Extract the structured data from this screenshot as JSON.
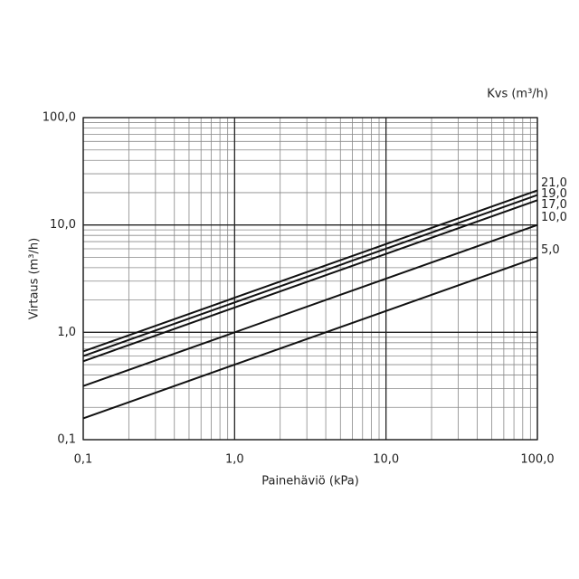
{
  "chart_data": {
    "type": "line",
    "x_label": "Painehäviö (kPa)",
    "y_label": "Virtaus (m³/h)",
    "legend_title": "Kvs (m³/h)",
    "x": [
      0.1,
      100
    ],
    "series": [
      {
        "name": "21,0",
        "color": "#111111",
        "values": [
          0.664,
          21
        ]
      },
      {
        "name": "19,0",
        "color": "#111111",
        "values": [
          0.601,
          19
        ]
      },
      {
        "name": "17,0",
        "color": "#111111",
        "values": [
          0.538,
          17
        ]
      },
      {
        "name": "10,0",
        "color": "#111111",
        "values": [
          0.316,
          10
        ]
      },
      {
        "name": "5,0",
        "color": "#111111",
        "values": [
          0.158,
          5
        ]
      }
    ],
    "xlim": [
      0.1,
      100
    ],
    "ylim": [
      0.1,
      100
    ],
    "log_x": true,
    "log_y": true,
    "grid": true,
    "xticks": [
      {
        "value": 0.1,
        "label": "0,1"
      },
      {
        "value": 1,
        "label": "1,0"
      },
      {
        "value": 10,
        "label": "10,0"
      },
      {
        "value": 100,
        "label": "100,0"
      }
    ],
    "yticks": [
      {
        "value": 0.1,
        "label": "0,1"
      },
      {
        "value": 1,
        "label": "1,0"
      },
      {
        "value": 10,
        "label": "10,0"
      },
      {
        "value": 100,
        "label": "100,0"
      }
    ]
  }
}
